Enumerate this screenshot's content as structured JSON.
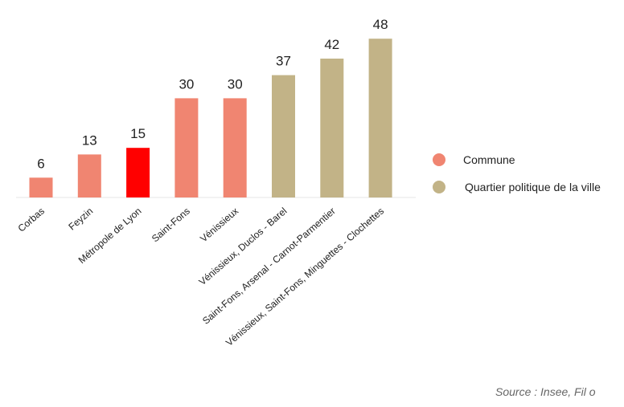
{
  "chart_data": {
    "type": "bar",
    "title": "",
    "xlabel": "",
    "ylabel": "",
    "ylim": [
      0,
      50
    ],
    "grid": false,
    "legend_position": "right",
    "categories": [
      "Corbas",
      "Feyzin",
      "Métropole de Lyon",
      "Saint-Fons",
      "Vénissieux",
      "Vénissieux, Duclos - Barel",
      "Saint-Fons, Arsenal - Carnot-Parmentier",
      "Vénissieux, Saint-Fons, Minguettes - Clochettes"
    ],
    "values": [
      6,
      13,
      15,
      30,
      30,
      37,
      42,
      48
    ],
    "data_labels": [
      "6",
      "13",
      "15",
      "30",
      "30",
      "37",
      "42",
      "48"
    ],
    "groups": [
      "commune",
      "commune",
      "metropole",
      "commune",
      "commune",
      "qpv",
      "qpv",
      "qpv"
    ]
  },
  "colors": {
    "commune": "#f08571",
    "metropole": "#ff0000",
    "qpv": "#c2b387",
    "baseline": "#e6e6e6",
    "text": "#222222"
  },
  "legend": {
    "items": [
      {
        "key": "commune",
        "label": "Commune"
      },
      {
        "key": "qpv",
        "label": "Quartier politique de la ville"
      }
    ]
  },
  "source_text": "Source : Insee, Fil o"
}
